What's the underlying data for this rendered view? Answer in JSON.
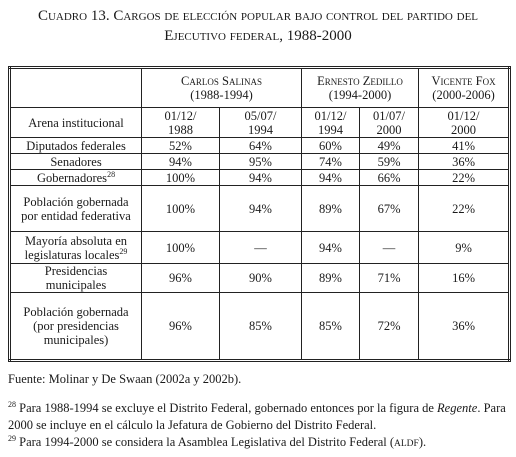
{
  "header": {
    "title_lines": [
      "Cuadro 13. Cargos de elección popular bajo control del partido del",
      "Ejecutivo federal, 1988-2000"
    ]
  },
  "table": {
    "groups": [
      {
        "name": "Carlos Salinas",
        "period": "(1988-1994)"
      },
      {
        "name": "Ernesto Zedillo",
        "period": "(1994-2000)"
      },
      {
        "name": "Vicente Fox",
        "period": "(2000-2006)"
      }
    ],
    "row_header": "Arena institucional",
    "dates": [
      [
        "01/12/",
        "1988"
      ],
      [
        "05/07/",
        "1994"
      ],
      [
        "01/12/",
        "1994"
      ],
      [
        "01/07/",
        "2000"
      ],
      [
        "01/12/",
        "2000"
      ]
    ],
    "rows": [
      {
        "label": "Diputados federales",
        "cells": [
          "52%",
          "64%",
          "60%",
          "49%",
          "41%"
        ]
      },
      {
        "label": "Senadores",
        "cells": [
          "94%",
          "95%",
          "74%",
          "59%",
          "36%"
        ]
      },
      {
        "label": "Gobernadores",
        "note": "28",
        "cells": [
          "100%",
          "94%",
          "94%",
          "66%",
          "22%"
        ]
      },
      {
        "label": "Población gobernada por entidad federativa",
        "cells": [
          "100%",
          "94%",
          "89%",
          "67%",
          "22%"
        ]
      },
      {
        "label": "Mayoría absoluta en legislaturas locales",
        "note": "29",
        "cells": [
          "100%",
          "—",
          "94%",
          "—",
          "9%"
        ]
      },
      {
        "label": "Presidencias municipales",
        "cells": [
          "96%",
          "90%",
          "89%",
          "71%",
          "16%"
        ]
      },
      {
        "label": "Población gobernada (por presidencias municipales)",
        "cells": [
          "96%",
          "85%",
          "85%",
          "72%",
          "36%"
        ]
      }
    ]
  },
  "source": "Fuente: Molinar y De Swaan (2002a y 2002b).",
  "footnotes": [
    {
      "number": "28",
      "parts": [
        {
          "text": "Para 1988-1994 se excluye el Distrito Federal, gobernado entonces por la figura de "
        },
        {
          "text": "Regente",
          "italic": true
        },
        {
          "text": ". Para 2000 se incluye en el cálculo la Jefatura de Gobierno del Distrito Federal."
        }
      ]
    },
    {
      "number": "29",
      "parts": [
        {
          "text": "Para 1994-2000 se considera la Asamblea Legislativa del Distrito Federal ("
        },
        {
          "text": "ALDF",
          "small": true
        },
        {
          "text": ")."
        }
      ]
    }
  ]
}
